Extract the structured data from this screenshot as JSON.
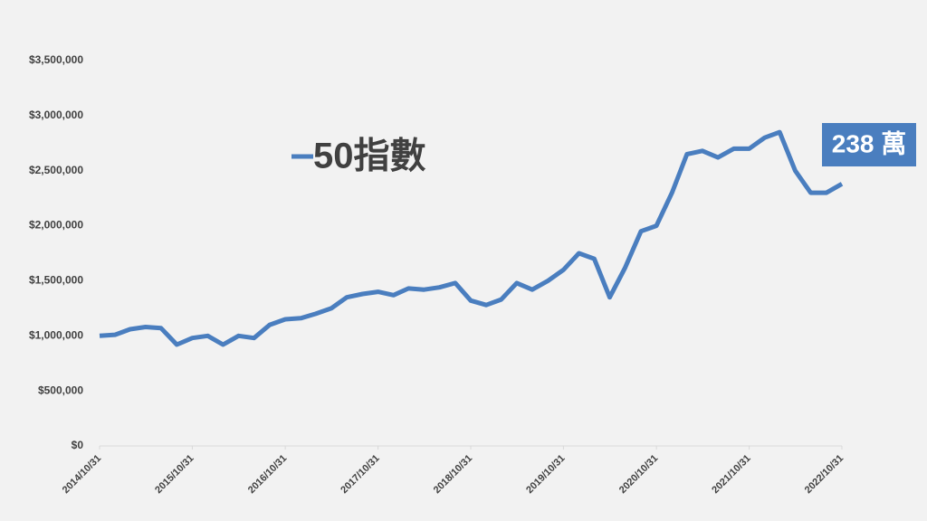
{
  "chart_data": {
    "type": "line",
    "x": [
      "2014/10/31",
      "2014/12/31",
      "2015/02/28",
      "2015/04/30",
      "2015/06/30",
      "2015/08/31",
      "2015/10/31",
      "2015/12/31",
      "2016/02/29",
      "2016/04/30",
      "2016/06/30",
      "2016/08/31",
      "2016/10/31",
      "2016/12/31",
      "2017/02/28",
      "2017/04/30",
      "2017/06/30",
      "2017/08/31",
      "2017/10/31",
      "2017/12/31",
      "2018/02/28",
      "2018/04/30",
      "2018/06/30",
      "2018/08/31",
      "2018/10/31",
      "2018/12/31",
      "2019/02/28",
      "2019/04/30",
      "2019/06/30",
      "2019/08/31",
      "2019/10/31",
      "2019/12/31",
      "2020/02/29",
      "2020/04/30",
      "2020/06/30",
      "2020/08/31",
      "2020/10/31",
      "2020/12/31",
      "2021/02/28",
      "2021/04/30",
      "2021/06/30",
      "2021/08/31",
      "2021/10/31",
      "2021/12/31",
      "2022/02/28",
      "2022/04/30",
      "2022/06/30",
      "2022/08/31",
      "2022/10/31"
    ],
    "series": [
      {
        "name": "50指數",
        "color": "#4a7ebf",
        "values": [
          1000000,
          1010000,
          1060000,
          1080000,
          1070000,
          920000,
          980000,
          1000000,
          920000,
          1000000,
          980000,
          1100000,
          1150000,
          1160000,
          1200000,
          1250000,
          1350000,
          1380000,
          1400000,
          1370000,
          1430000,
          1420000,
          1440000,
          1480000,
          1320000,
          1280000,
          1330000,
          1480000,
          1420000,
          1500000,
          1600000,
          1750000,
          1700000,
          1350000,
          1620000,
          1950000,
          2000000,
          2300000,
          2650000,
          2680000,
          2620000,
          2700000,
          2700000,
          2800000,
          2850000,
          2500000,
          2300000,
          2300000,
          2380000
        ]
      }
    ],
    "annotation": "238 萬",
    "xlim": [
      "2014/10/31",
      "2022/10/31"
    ],
    "xticks": [
      "2014/10/31",
      "2015/10/31",
      "2016/10/31",
      "2017/10/31",
      "2018/10/31",
      "2019/10/31",
      "2020/10/31",
      "2021/10/31",
      "2022/10/31"
    ],
    "ylim": [
      0,
      3500000
    ],
    "yticks": [
      {
        "value": 0,
        "label": "$0"
      },
      {
        "value": 500000,
        "label": "$500,000"
      },
      {
        "value": 1000000,
        "label": "$1,000,000"
      },
      {
        "value": 1500000,
        "label": "$1,500,000"
      },
      {
        "value": 2000000,
        "label": "$2,000,000"
      },
      {
        "value": 2500000,
        "label": "$2,500,000"
      },
      {
        "value": 3000000,
        "label": "$3,000,000"
      },
      {
        "value": 3500000,
        "label": "$3,500,000"
      }
    ],
    "grid": false
  }
}
